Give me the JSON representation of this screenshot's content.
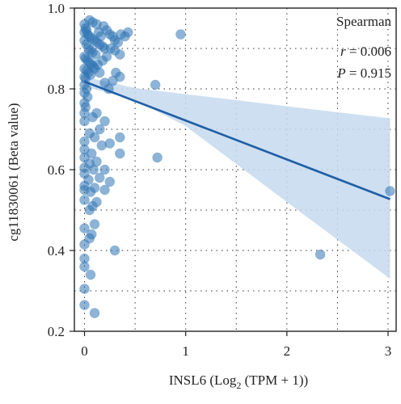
{
  "chart_data": {
    "type": "scatter",
    "xlabel": "INSL6 (Log2 (TPM + 1))",
    "xlabel_parts": {
      "prefix": "INSL6 (Log",
      "sub": "2",
      "suffix": " (TPM + 1))"
    },
    "ylabel": "cg11830061 (Beta value)",
    "xlim": [
      -0.1,
      3.08
    ],
    "ylim": [
      0.2,
      1.0
    ],
    "x_ticks": [
      0,
      1,
      2,
      3
    ],
    "x_tick_labels": [
      "0",
      "1",
      "2",
      "3"
    ],
    "y_ticks": [
      0.2,
      0.4,
      0.6,
      0.8,
      1.0
    ],
    "y_tick_labels": [
      "0.2",
      "0.4",
      "0.6",
      "0.8",
      "1.0"
    ],
    "grid": "dotted",
    "colors": {
      "points": "#2f74b5",
      "line": "#1f5fa5",
      "band": "#c6d9ee"
    },
    "annotation": {
      "title": "Spearman",
      "r_label": "r",
      "r_value": " = 0.006",
      "p_label": "P",
      "p_value": " = 0.915"
    },
    "regression": {
      "x0": 0.0,
      "y0": 0.818,
      "x1": 3.02,
      "y1": 0.527
    },
    "ci_band": {
      "upper": [
        [
          0.0,
          0.83
        ],
        [
          0.5,
          0.802
        ],
        [
          1.0,
          0.787
        ],
        [
          2.0,
          0.757
        ],
        [
          3.02,
          0.727
        ]
      ],
      "lower": [
        [
          0.0,
          0.806
        ],
        [
          0.5,
          0.772
        ],
        [
          1.0,
          0.708
        ],
        [
          2.0,
          0.52
        ],
        [
          3.02,
          0.33
        ]
      ]
    },
    "points": [
      [
        0.0,
        0.96
      ],
      [
        0.01,
        0.95
      ],
      [
        0.02,
        0.945
      ],
      [
        0.0,
        0.94
      ],
      [
        0.03,
        0.935
      ],
      [
        0.05,
        0.93
      ],
      [
        0.07,
        0.925
      ],
      [
        0.1,
        0.92
      ],
      [
        0.12,
        0.915
      ],
      [
        0.15,
        0.91
      ],
      [
        0.18,
        0.905
      ],
      [
        0.2,
        0.9
      ],
      [
        0.0,
        0.92
      ],
      [
        0.02,
        0.91
      ],
      [
        0.04,
        0.9
      ],
      [
        0.06,
        0.895
      ],
      [
        0.08,
        0.89
      ],
      [
        0.11,
        0.885
      ],
      [
        0.0,
        0.88
      ],
      [
        0.01,
        0.875
      ],
      [
        0.03,
        0.87
      ],
      [
        0.05,
        0.865
      ],
      [
        0.07,
        0.86
      ],
      [
        0.09,
        0.855
      ],
      [
        0.0,
        0.85
      ],
      [
        0.02,
        0.845
      ],
      [
        0.04,
        0.84
      ],
      [
        0.06,
        0.835
      ],
      [
        0.0,
        0.83
      ],
      [
        0.01,
        0.825
      ],
      [
        0.14,
        0.94
      ],
      [
        0.16,
        0.93
      ],
      [
        0.19,
        0.955
      ],
      [
        0.22,
        0.945
      ],
      [
        0.25,
        0.935
      ],
      [
        0.28,
        0.93
      ],
      [
        0.3,
        0.92
      ],
      [
        0.33,
        0.915
      ],
      [
        0.36,
        0.935
      ],
      [
        0.4,
        0.93
      ],
      [
        0.05,
        0.97
      ],
      [
        0.08,
        0.965
      ],
      [
        0.12,
        0.96
      ],
      [
        0.26,
        0.9
      ],
      [
        0.3,
        0.895
      ],
      [
        0.35,
        0.885
      ],
      [
        0.22,
        0.88
      ],
      [
        0.18,
        0.87
      ],
      [
        0.13,
        0.86
      ],
      [
        0.1,
        0.85
      ],
      [
        0.15,
        0.84
      ],
      [
        0.31,
        0.84
      ],
      [
        0.35,
        0.83
      ],
      [
        0.28,
        0.82
      ],
      [
        0.2,
        0.815
      ],
      [
        0.24,
        0.8
      ],
      [
        0.0,
        0.81
      ],
      [
        0.02,
        0.8
      ],
      [
        0.0,
        0.79
      ],
      [
        0.03,
        0.78
      ],
      [
        0.0,
        0.765
      ],
      [
        0.01,
        0.755
      ],
      [
        0.0,
        0.74
      ],
      [
        0.12,
        0.74
      ],
      [
        0.08,
        0.73
      ],
      [
        0.0,
        0.72
      ],
      [
        0.2,
        0.72
      ],
      [
        0.15,
        0.7
      ],
      [
        0.05,
        0.69
      ],
      [
        0.1,
        0.68
      ],
      [
        0.0,
        0.67
      ],
      [
        0.35,
        0.68
      ],
      [
        0.25,
        0.665
      ],
      [
        0.17,
        0.66
      ],
      [
        0.0,
        0.65
      ],
      [
        0.07,
        0.64
      ],
      [
        0.35,
        0.64
      ],
      [
        0.0,
        0.63
      ],
      [
        0.12,
        0.62
      ],
      [
        0.05,
        0.615
      ],
      [
        0.0,
        0.605
      ],
      [
        0.2,
        0.6
      ],
      [
        0.09,
        0.6
      ],
      [
        0.0,
        0.59
      ],
      [
        0.15,
        0.58
      ],
      [
        0.04,
        0.575
      ],
      [
        0.25,
        0.57
      ],
      [
        0.0,
        0.56
      ],
      [
        0.1,
        0.555
      ],
      [
        0.2,
        0.55
      ],
      [
        0.0,
        0.55
      ],
      [
        0.06,
        0.545
      ],
      [
        0.0,
        0.525
      ],
      [
        0.12,
        0.52
      ],
      [
        0.08,
        0.51
      ],
      [
        0.05,
        0.5
      ],
      [
        0.1,
        0.465
      ],
      [
        0.0,
        0.455
      ],
      [
        0.07,
        0.44
      ],
      [
        0.05,
        0.43
      ],
      [
        0.0,
        0.415
      ],
      [
        0.3,
        0.4
      ],
      [
        0.0,
        0.38
      ],
      [
        0.0,
        0.36
      ],
      [
        0.06,
        0.34
      ],
      [
        0.0,
        0.305
      ],
      [
        0.0,
        0.265
      ],
      [
        0.1,
        0.245
      ],
      [
        0.43,
        0.94
      ],
      [
        0.95,
        0.935
      ],
      [
        0.7,
        0.81
      ],
      [
        0.72,
        0.63
      ],
      [
        2.33,
        0.39
      ],
      [
        3.02,
        0.547
      ]
    ]
  }
}
